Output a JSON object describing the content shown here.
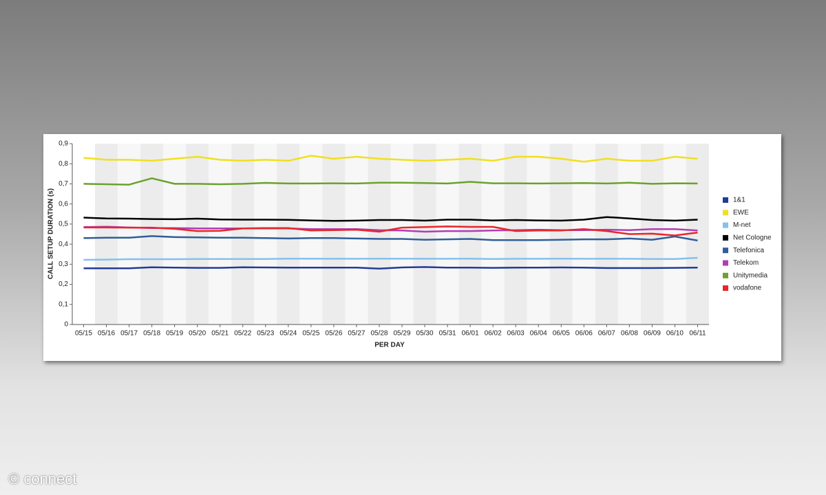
{
  "chart_data": {
    "type": "line",
    "y_label": "CALL SETUP DURATION (s)",
    "x_label": "PER DAY",
    "categories": [
      "05/15",
      "05/16",
      "05/17",
      "05/18",
      "05/19",
      "05/20",
      "05/21",
      "05/22",
      "05/23",
      "05/24",
      "05/25",
      "05/26",
      "05/27",
      "05/28",
      "05/29",
      "05/30",
      "05/31",
      "06/01",
      "06/02",
      "06/03",
      "06/04",
      "06/05",
      "06/06",
      "06/07",
      "06/08",
      "06/09",
      "06/10",
      "06/11"
    ],
    "ylim": [
      0,
      0.9
    ],
    "yticks": [
      0,
      {
        "value": 0.1,
        "label": "0,1"
      },
      {
        "value": 0.2,
        "label": "0,2"
      },
      {
        "value": 0.3,
        "label": "0,3"
      },
      {
        "value": 0.4,
        "label": "0,4"
      },
      {
        "value": 0.5,
        "label": "0,5"
      },
      {
        "value": 0.6,
        "label": "0,6"
      },
      {
        "value": 0.7,
        "label": "0,7"
      },
      {
        "value": 0.8,
        "label": "0,8"
      },
      {
        "value": 0.9,
        "label": "0,9"
      }
    ],
    "series": [
      {
        "name": "1&1",
        "color": "#1f3c99",
        "values": [
          0.28,
          0.28,
          0.28,
          0.285,
          0.283,
          0.282,
          0.282,
          0.285,
          0.284,
          0.283,
          0.283,
          0.283,
          0.283,
          0.278,
          0.284,
          0.286,
          0.283,
          0.283,
          0.282,
          0.283,
          0.283,
          0.284,
          0.283,
          0.281,
          0.281,
          0.281,
          0.282,
          0.283
        ]
      },
      {
        "name": "EWE",
        "color": "#f0e01e",
        "values": [
          0.83,
          0.82,
          0.82,
          0.815,
          0.825,
          0.835,
          0.82,
          0.815,
          0.82,
          0.815,
          0.84,
          0.825,
          0.835,
          0.825,
          0.82,
          0.815,
          0.82,
          0.825,
          0.815,
          0.835,
          0.835,
          0.825,
          0.81,
          0.825,
          0.815,
          0.815,
          0.835,
          0.825
        ]
      },
      {
        "name": "M-net",
        "color": "#84c1ee",
        "values": [
          0.322,
          0.323,
          0.325,
          0.325,
          0.325,
          0.326,
          0.326,
          0.326,
          0.326,
          0.328,
          0.328,
          0.327,
          0.327,
          0.328,
          0.328,
          0.327,
          0.327,
          0.328,
          0.326,
          0.327,
          0.327,
          0.328,
          0.327,
          0.327,
          0.327,
          0.326,
          0.326,
          0.332
        ]
      },
      {
        "name": "Net Cologne",
        "color": "#000000",
        "values": [
          0.532,
          0.528,
          0.527,
          0.525,
          0.524,
          0.527,
          0.523,
          0.522,
          0.522,
          0.521,
          0.518,
          0.516,
          0.517,
          0.52,
          0.52,
          0.517,
          0.522,
          0.522,
          0.518,
          0.52,
          0.518,
          0.517,
          0.522,
          0.535,
          0.528,
          0.52,
          0.517,
          0.522
        ]
      },
      {
        "name": "Telefonica",
        "color": "#2f5e98",
        "values": [
          0.43,
          0.432,
          0.432,
          0.44,
          0.435,
          0.434,
          0.432,
          0.432,
          0.43,
          0.428,
          0.43,
          0.43,
          0.428,
          0.426,
          0.426,
          0.422,
          0.424,
          0.426,
          0.42,
          0.42,
          0.42,
          0.422,
          0.424,
          0.424,
          0.428,
          0.422,
          0.438,
          0.418
        ]
      },
      {
        "name": "Telekom",
        "color": "#b23db3",
        "values": [
          0.485,
          0.487,
          0.483,
          0.48,
          0.48,
          0.478,
          0.478,
          0.478,
          0.478,
          0.478,
          0.475,
          0.475,
          0.475,
          0.47,
          0.468,
          0.462,
          0.465,
          0.465,
          0.468,
          0.47,
          0.472,
          0.47,
          0.47,
          0.472,
          0.47,
          0.475,
          0.475,
          0.468
        ]
      },
      {
        "name": "Unitymedia",
        "color": "#6ba22b",
        "values": [
          0.7,
          0.698,
          0.696,
          0.728,
          0.7,
          0.7,
          0.698,
          0.7,
          0.705,
          0.702,
          0.702,
          0.703,
          0.702,
          0.706,
          0.706,
          0.704,
          0.702,
          0.71,
          0.703,
          0.703,
          0.702,
          0.703,
          0.704,
          0.702,
          0.706,
          0.7,
          0.703,
          0.702
        ]
      },
      {
        "name": "vodafone",
        "color": "#e8262a",
        "values": [
          0.483,
          0.483,
          0.482,
          0.482,
          0.476,
          0.465,
          0.466,
          0.478,
          0.48,
          0.48,
          0.468,
          0.47,
          0.472,
          0.462,
          0.482,
          0.485,
          0.488,
          0.486,
          0.486,
          0.465,
          0.468,
          0.468,
          0.475,
          0.465,
          0.45,
          0.452,
          0.443,
          0.458
        ]
      }
    ]
  },
  "watermark": "© connect"
}
